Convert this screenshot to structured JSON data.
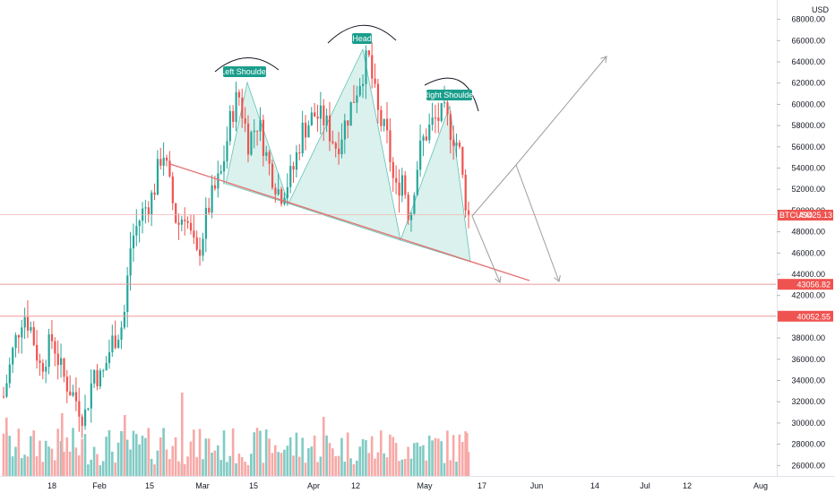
{
  "chart_data": {
    "type": "candlestick",
    "symbol": "BTCUSD",
    "currency": "USD",
    "y_ticks": [
      26000,
      28000,
      30000,
      32000,
      34000,
      36000,
      38000,
      40000,
      42000,
      44000,
      46000,
      48000,
      50000,
      52000,
      54000,
      56000,
      58000,
      60000,
      62000,
      64000,
      66000,
      68000
    ],
    "x_ticks": [
      "18",
      "Feb",
      "15",
      "Mar",
      "15",
      "Apr",
      "12",
      "May",
      "17",
      "Jun",
      "14",
      "Jul",
      "12",
      "Aug"
    ],
    "last_price_label": "49425.13",
    "levels": [
      {
        "value": 43056.82,
        "label": "43056.82"
      },
      {
        "value": 40052.55,
        "label": "40052.55"
      }
    ],
    "pattern_labels": [
      "Left Shoulder",
      "Head",
      "Right Shoulder"
    ],
    "colors": {
      "up": "#26a69a",
      "down": "#ef5350",
      "vol_up": "#80cbc4",
      "vol_down": "#f7a9a7",
      "pattern_fill": "#d3eeea",
      "neckline": "#e57373",
      "level_line": "#ef9a9a",
      "arrow": "#9e9e9e",
      "label_bg": "#1a9e8c"
    }
  }
}
